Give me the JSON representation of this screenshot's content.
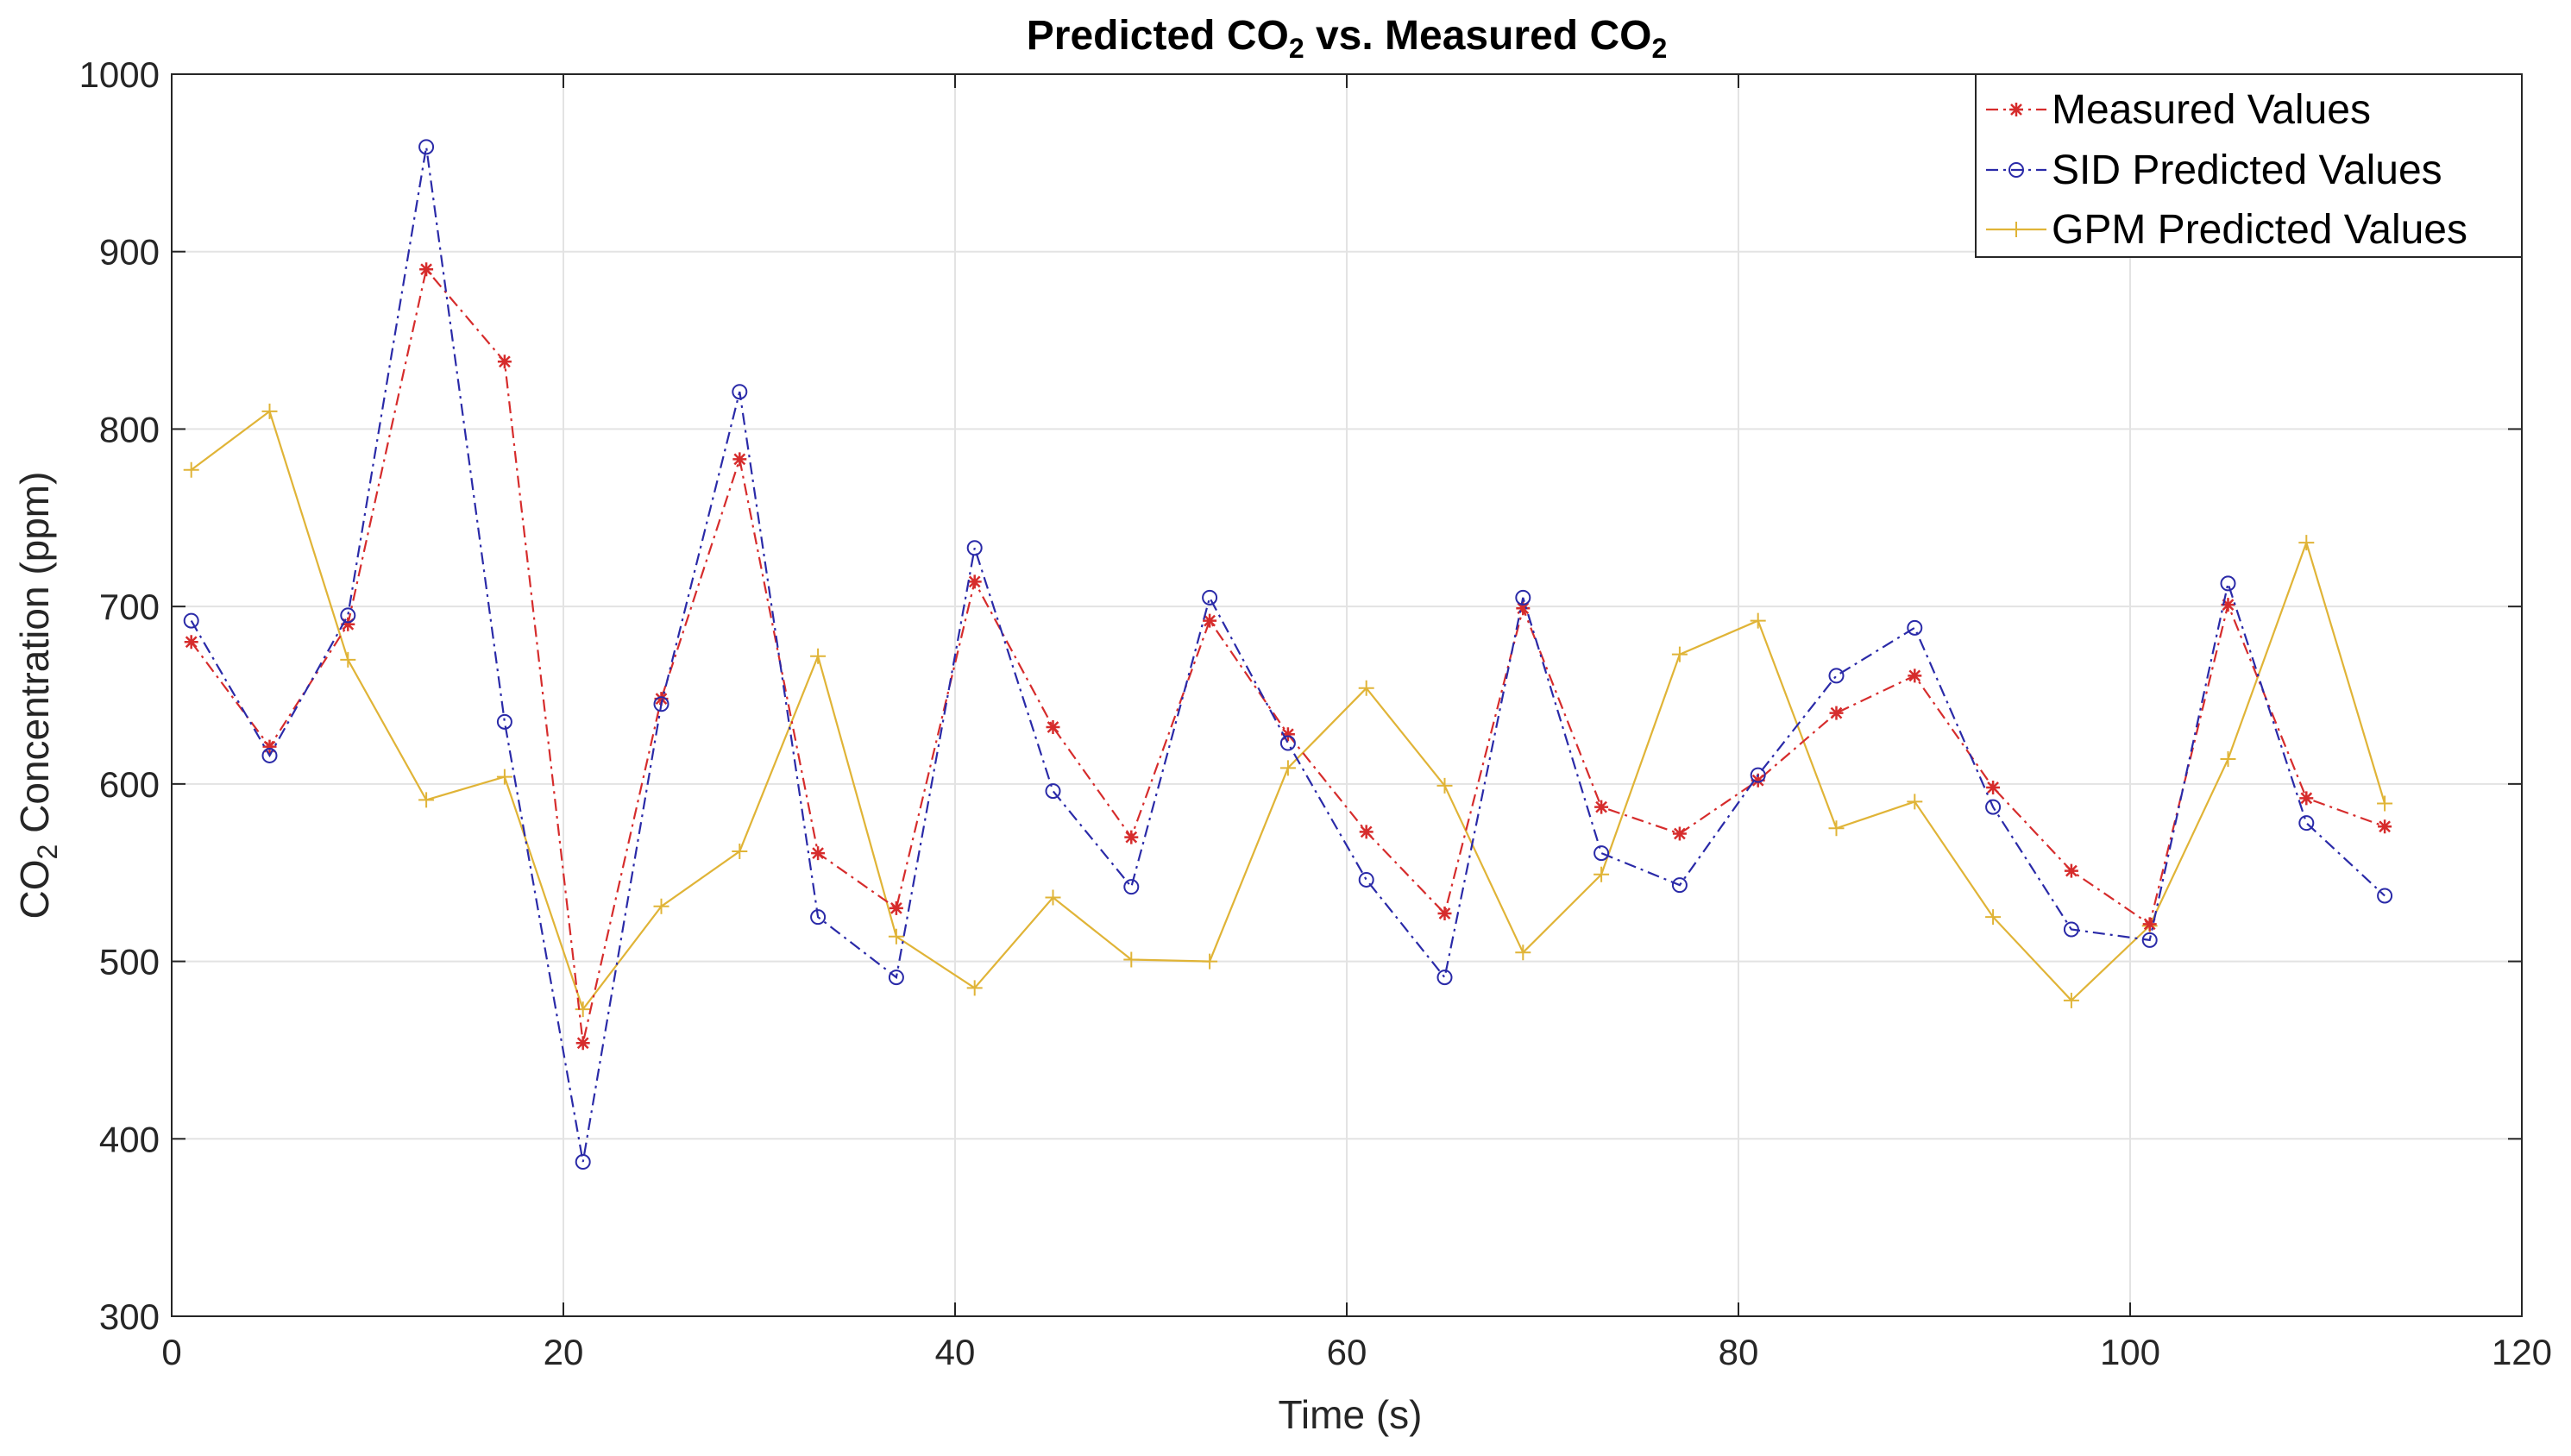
{
  "chart_data": {
    "type": "line",
    "title": "Predicted CO",
    "title_sub": "2",
    "title_mid": " vs. Measured CO",
    "title_sub2": "2",
    "xlabel": "Time (s)",
    "ylabel_main": "CO",
    "ylabel_sub": "2",
    "ylabel_rest": " Concentration (ppm)",
    "xlim": [
      0,
      120
    ],
    "ylim": [
      300,
      1000
    ],
    "xticks": [
      "0",
      "20",
      "40",
      "60",
      "80",
      "100",
      "120"
    ],
    "yticks": [
      "300",
      "400",
      "500",
      "600",
      "700",
      "800",
      "900",
      "1000"
    ],
    "grid": true,
    "legend_position": "top-right",
    "x": [
      1,
      5,
      9,
      13,
      17,
      21,
      25,
      29,
      33,
      37,
      41,
      45,
      49,
      53,
      57,
      61,
      65,
      69,
      73,
      77,
      81,
      85,
      89,
      93,
      97,
      101,
      105,
      109,
      113
    ],
    "series": [
      {
        "name": "Measured Values",
        "color": "#d62c2c",
        "marker": "star",
        "linestyle": "dashdot",
        "values": [
          680,
          621,
          690,
          890,
          838,
          454,
          648,
          783,
          561,
          530,
          714,
          632,
          570,
          692,
          628,
          573,
          527,
          699,
          587,
          572,
          602,
          640,
          661,
          598,
          551,
          521,
          701,
          592,
          576
        ]
      },
      {
        "name": "SID Predicted Values",
        "color": "#2a2aa8",
        "marker": "circle",
        "linestyle": "dashdot",
        "values": [
          692,
          616,
          695,
          959,
          635,
          387,
          645,
          821,
          525,
          491,
          733,
          596,
          542,
          705,
          623,
          546,
          491,
          705,
          561,
          543,
          605,
          661,
          688,
          587,
          518,
          512,
          713,
          578,
          537
        ]
      },
      {
        "name": "GPM Predicted Values",
        "color": "#e0b437",
        "marker": "plus",
        "linestyle": "solid",
        "values": [
          777,
          810,
          670,
          591,
          604,
          473,
          531,
          562,
          672,
          514,
          485,
          536,
          501,
          500,
          609,
          654,
          599,
          505,
          549,
          673,
          692,
          575,
          590,
          525,
          478,
          520,
          614,
          736,
          589
        ]
      }
    ]
  }
}
